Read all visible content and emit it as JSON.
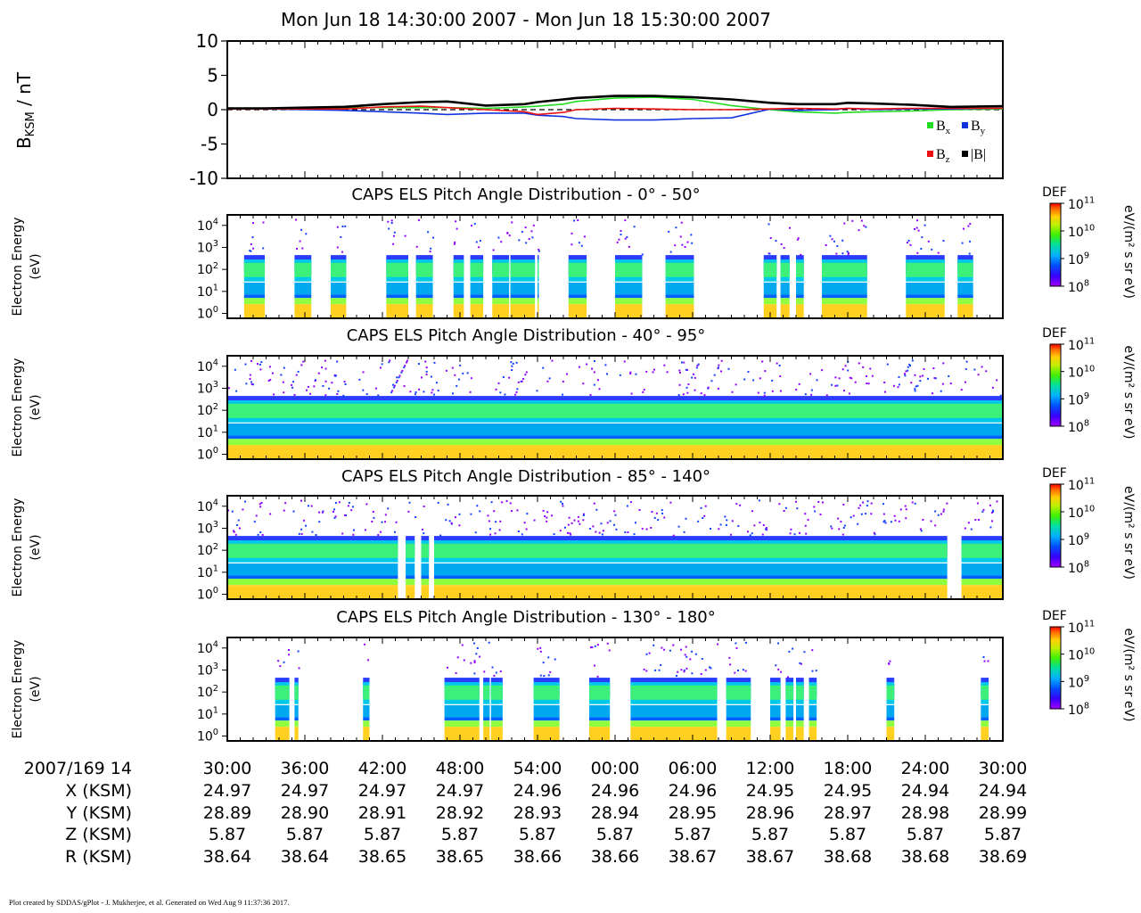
{
  "title": "Mon Jun 18 14:30:00 2007 - Mon Jun 18 15:30:00 2007",
  "footer": "Plot created by SDDAS/gPlot - J. Mukherjee, et al.  Generated on Wed Aug 9 11:37:36 2017.",
  "colors": {
    "bx": "#22dd22",
    "by": "#1133dd",
    "bz": "#ee1111",
    "bmag": "#000000",
    "colorbar": [
      "#a000ff",
      "#3a00ff",
      "#0050ff",
      "#00b0ff",
      "#00e0a0",
      "#40f000",
      "#c0f000",
      "#ffd000",
      "#ff7000",
      "#ff0000"
    ]
  },
  "chart_data": [
    {
      "type": "line",
      "panel": "mag",
      "ylabel": "B",
      "ylabel_sub": "KSM",
      "ylabel_unit": " / nT",
      "ylim": [
        -10,
        10
      ],
      "yticks": [
        10,
        5,
        0,
        -5,
        -10
      ],
      "zero_line": "dashed",
      "x_minutes": [
        0,
        3,
        6,
        9,
        12,
        15,
        17,
        20,
        23,
        24,
        26,
        27,
        30,
        33,
        36,
        39,
        42,
        44,
        47,
        48,
        50,
        53,
        56,
        60
      ],
      "series": [
        {
          "name": "B",
          "sub": "x",
          "color_key": "bx",
          "values": [
            0.2,
            0.2,
            0.2,
            0.3,
            0.3,
            0.3,
            0.3,
            0.2,
            0.4,
            0.5,
            0.8,
            1.2,
            1.7,
            1.8,
            1.5,
            0.6,
            0.0,
            -0.3,
            -0.5,
            -0.4,
            -0.3,
            -0.2,
            0.0,
            0.1
          ]
        },
        {
          "name": "B",
          "sub": "y",
          "color_key": "by",
          "values": [
            0.1,
            0.1,
            0.0,
            -0.1,
            -0.3,
            -0.5,
            -0.7,
            -0.5,
            -0.5,
            -0.8,
            -1.0,
            -1.3,
            -1.5,
            -1.5,
            -1.3,
            -1.2,
            0.1,
            -0.1,
            0.0,
            0.2,
            0.0,
            0.1,
            0.1,
            0.2
          ]
        },
        {
          "name": "B",
          "sub": "z",
          "color_key": "bz",
          "values": [
            0.1,
            0.1,
            0.1,
            0.1,
            0.4,
            0.5,
            0.3,
            0.0,
            -0.3,
            -0.7,
            -0.4,
            0.0,
            0.2,
            0.1,
            0.0,
            0.0,
            0.1,
            0.2,
            0.1,
            0.2,
            0.1,
            0.2,
            0.2,
            0.2
          ]
        },
        {
          "name": "|B|",
          "sub": "",
          "color_key": "bmag",
          "values": [
            0.2,
            0.2,
            0.3,
            0.4,
            0.8,
            1.1,
            1.2,
            0.6,
            0.8,
            1.1,
            1.5,
            1.7,
            2.0,
            2.0,
            1.8,
            1.5,
            1.0,
            0.8,
            0.8,
            1.0,
            0.9,
            0.7,
            0.4,
            0.5
          ]
        }
      ],
      "legend": "bottom-right"
    },
    {
      "type": "heatmap",
      "panel": "pa1",
      "title": "CAPS ELS Pitch Angle Distribution - 0° - 50°",
      "ylabel": [
        "Electron Energy",
        "(eV)"
      ],
      "y_scale": "log",
      "ylim_eV": [
        0.6,
        30000
      ],
      "yticks_exp": [
        0,
        1,
        2,
        3,
        4
      ],
      "colorbar": {
        "label": "DEF",
        "unit": "eV/(m² s sr eV)",
        "range_exp": [
          8,
          11
        ],
        "scale": "log"
      },
      "data_blocks_minutes": [
        [
          1.3,
          2.9
        ],
        [
          5.2,
          6.5
        ],
        [
          8.0,
          9.2
        ],
        [
          12.3,
          14.0
        ],
        [
          14.6,
          15.9
        ],
        [
          17.5,
          18.3
        ],
        [
          18.8,
          19.8
        ],
        [
          20.5,
          21.8
        ],
        [
          21.9,
          23.8
        ],
        [
          24.0,
          24.1
        ],
        [
          26.4,
          27.8
        ],
        [
          30.0,
          32.1
        ],
        [
          33.9,
          36.1
        ],
        [
          41.5,
          42.5
        ],
        [
          42.8,
          43.5
        ],
        [
          44.0,
          44.6
        ],
        [
          46.0,
          49.5
        ],
        [
          52.5,
          55.5
        ],
        [
          56.5,
          57.7
        ]
      ]
    },
    {
      "type": "heatmap",
      "panel": "pa2",
      "title": "CAPS ELS Pitch Angle Distribution - 40° - 95°",
      "ylabel": [
        "Electron Energy",
        "(eV)"
      ],
      "y_scale": "log",
      "ylim_eV": [
        0.6,
        30000
      ],
      "yticks_exp": [
        0,
        1,
        2,
        3,
        4
      ],
      "colorbar": {
        "label": "DEF",
        "unit": "eV/(m² s sr eV)",
        "range_exp": [
          8,
          11
        ],
        "scale": "log"
      },
      "data_blocks_minutes": [
        [
          0.0,
          60.0
        ]
      ]
    },
    {
      "type": "heatmap",
      "panel": "pa3",
      "title": "CAPS ELS Pitch Angle Distribution - 85° - 140°",
      "ylabel": [
        "Electron Energy",
        "(eV)"
      ],
      "y_scale": "log",
      "ylim_eV": [
        0.6,
        30000
      ],
      "yticks_exp": [
        0,
        1,
        2,
        3,
        4
      ],
      "colorbar": {
        "label": "DEF",
        "unit": "eV/(m² s sr eV)",
        "range_exp": [
          8,
          11
        ],
        "scale": "log"
      },
      "data_blocks_minutes": [
        [
          0.0,
          13.2
        ],
        [
          13.8,
          14.5
        ],
        [
          15.0,
          15.6
        ],
        [
          16.0,
          55.7
        ],
        [
          56.8,
          60.0
        ]
      ]
    },
    {
      "type": "heatmap",
      "panel": "pa4",
      "title": "CAPS ELS Pitch Angle Distribution - 130° - 180°",
      "ylabel": [
        "Electron Energy",
        "(eV)"
      ],
      "y_scale": "log",
      "ylim_eV": [
        0.6,
        30000
      ],
      "yticks_exp": [
        0,
        1,
        2,
        3,
        4
      ],
      "colorbar": {
        "label": "DEF",
        "unit": "eV/(m² s sr eV)",
        "range_exp": [
          8,
          11
        ],
        "scale": "log"
      },
      "data_blocks_minutes": [
        [
          3.7,
          4.8
        ],
        [
          5.2,
          5.5
        ],
        [
          10.5,
          11.0
        ],
        [
          16.8,
          19.5
        ],
        [
          19.8,
          20.3
        ],
        [
          20.4,
          21.3
        ],
        [
          23.7,
          25.7
        ],
        [
          28.0,
          29.6
        ],
        [
          31.2,
          37.9
        ],
        [
          38.6,
          40.5
        ],
        [
          42.0,
          42.8
        ],
        [
          43.2,
          43.8
        ],
        [
          44.0,
          44.6
        ],
        [
          45.0,
          45.6
        ],
        [
          51.0,
          51.6
        ],
        [
          58.3,
          58.9
        ]
      ]
    }
  ],
  "axis": {
    "row_labels": [
      "2007/169 14",
      "X (KSM)",
      "Y (KSM)",
      "Z (KSM)",
      "R (KSM)"
    ],
    "time_labels": [
      "30:00",
      "36:00",
      "42:00",
      "48:00",
      "54:00",
      "00:00",
      "06:00",
      "12:00",
      "18:00",
      "24:00",
      "30:00"
    ],
    "x": [
      "24.97",
      "24.97",
      "24.97",
      "24.97",
      "24.96",
      "24.96",
      "24.96",
      "24.95",
      "24.95",
      "24.94",
      "24.94"
    ],
    "y": [
      "28.89",
      "28.90",
      "28.91",
      "28.92",
      "28.93",
      "28.94",
      "28.95",
      "28.96",
      "28.97",
      "28.98",
      "28.99"
    ],
    "z": [
      "5.87",
      "5.87",
      "5.87",
      "5.87",
      "5.87",
      "5.87",
      "5.87",
      "5.87",
      "5.87",
      "5.87",
      "5.87"
    ],
    "r": [
      "38.64",
      "38.64",
      "38.65",
      "38.65",
      "38.66",
      "38.66",
      "38.67",
      "38.67",
      "38.68",
      "38.68",
      "38.69"
    ]
  }
}
